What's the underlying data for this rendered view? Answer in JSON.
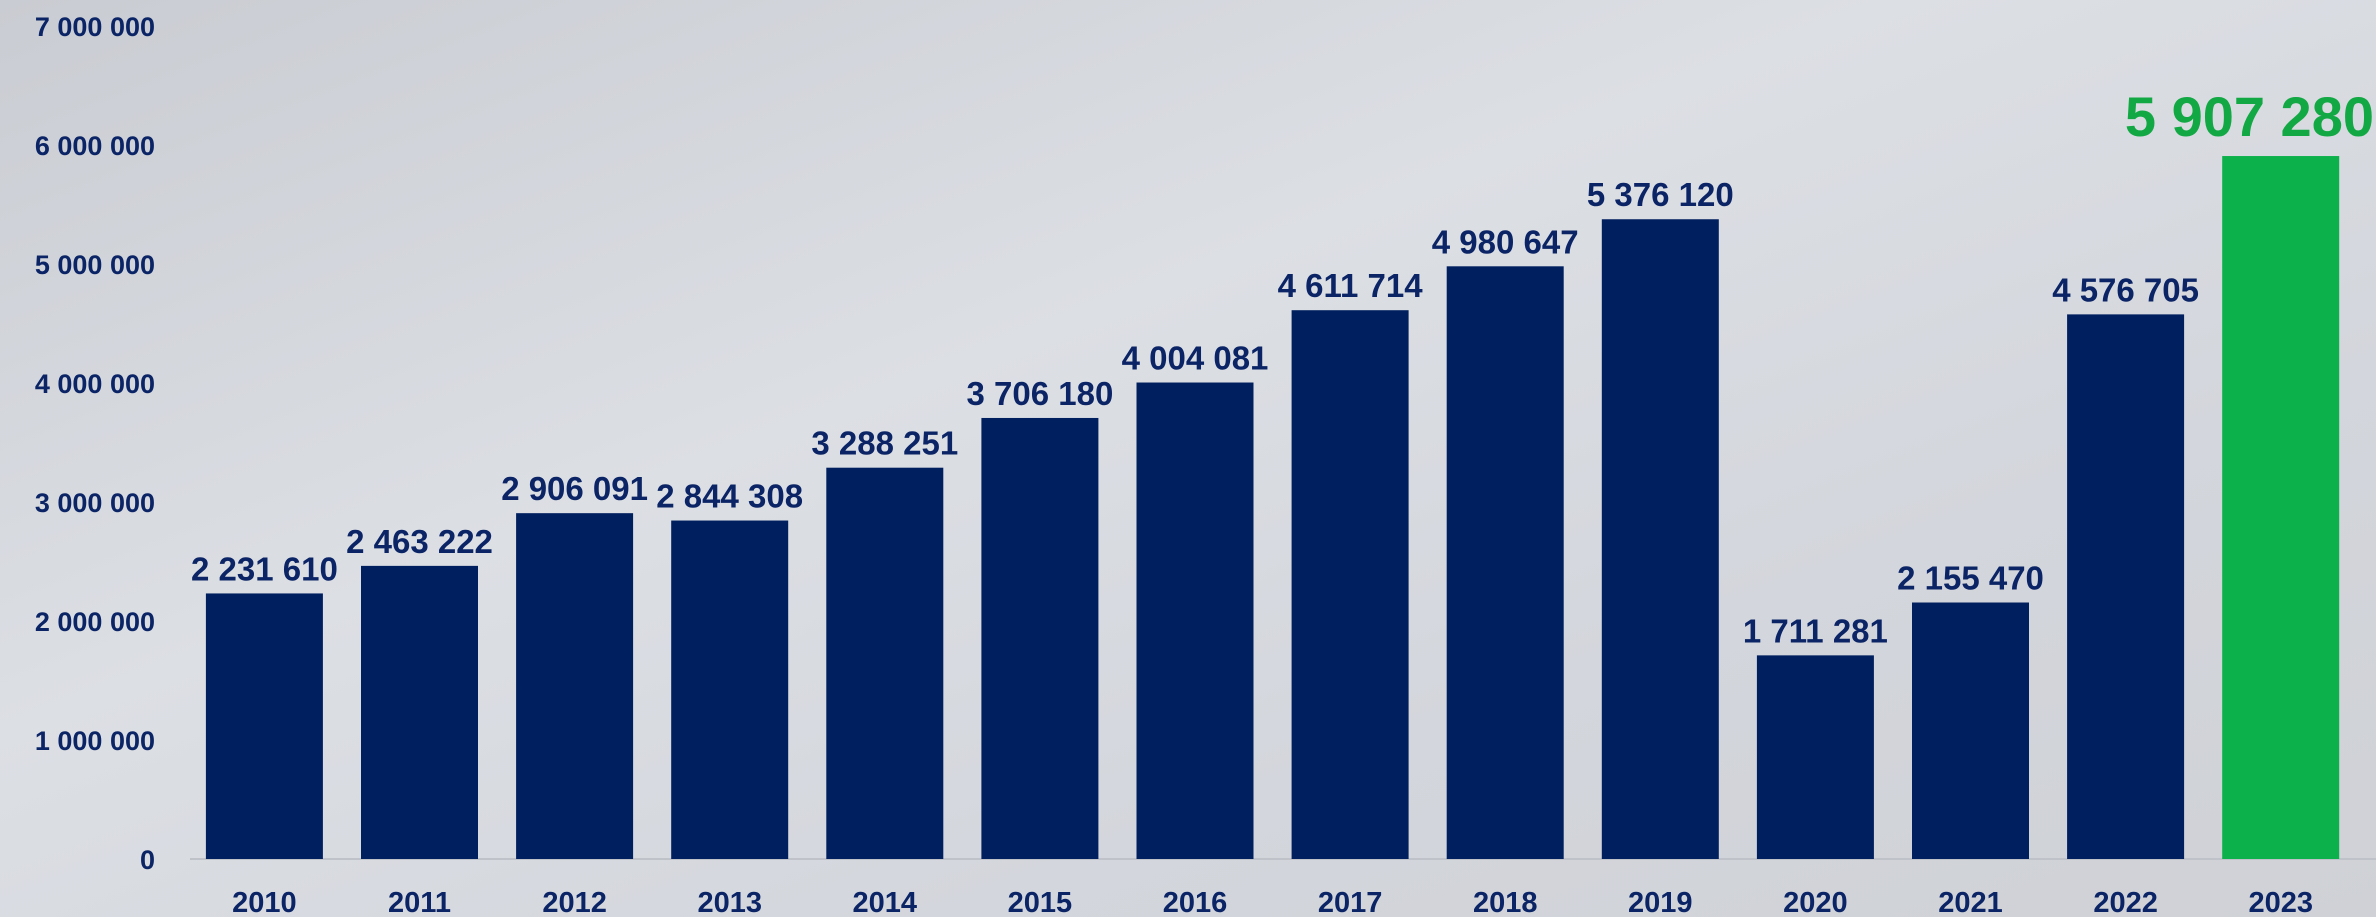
{
  "chart_data": {
    "type": "bar",
    "categories": [
      "2010",
      "2011",
      "2012",
      "2013",
      "2014",
      "2015",
      "2016",
      "2017",
      "2018",
      "2019",
      "2020",
      "2021",
      "2022",
      "2023"
    ],
    "values": [
      2231610,
      2463222,
      2906091,
      2844308,
      3288251,
      3706180,
      4004081,
      4611714,
      4980647,
      5376120,
      1711281,
      2155470,
      4576705,
      5907280
    ],
    "value_labels": [
      "2 231 610",
      "2 463 222",
      "2 906 091",
      "2 844 308",
      "3 288 251",
      "3 706 180",
      "4 004 081",
      "4 611 714",
      "4 980 647",
      "5 376 120",
      "1 711 281",
      "2 155 470",
      "4 576 705",
      "5 907 280"
    ],
    "colors": [
      "#001f5f",
      "#001f5f",
      "#001f5f",
      "#001f5f",
      "#001f5f",
      "#001f5f",
      "#001f5f",
      "#001f5f",
      "#001f5f",
      "#001f5f",
      "#001f5f",
      "#001f5f",
      "#001f5f",
      "#0db14b"
    ],
    "ylim": [
      0,
      7000000
    ],
    "yticks": [
      {
        "value": 0,
        "label": "0"
      },
      {
        "value": 1000000,
        "label": "1 000 000"
      },
      {
        "value": 2000000,
        "label": "2 000 000"
      },
      {
        "value": 3000000,
        "label": "3 000 000"
      },
      {
        "value": 4000000,
        "label": "4 000 000"
      },
      {
        "value": 5000000,
        "label": "5 000 000"
      },
      {
        "value": 6000000,
        "label": "6 000 000"
      },
      {
        "value": 7000000,
        "label": "7 000 000"
      }
    ],
    "grid": false
  }
}
